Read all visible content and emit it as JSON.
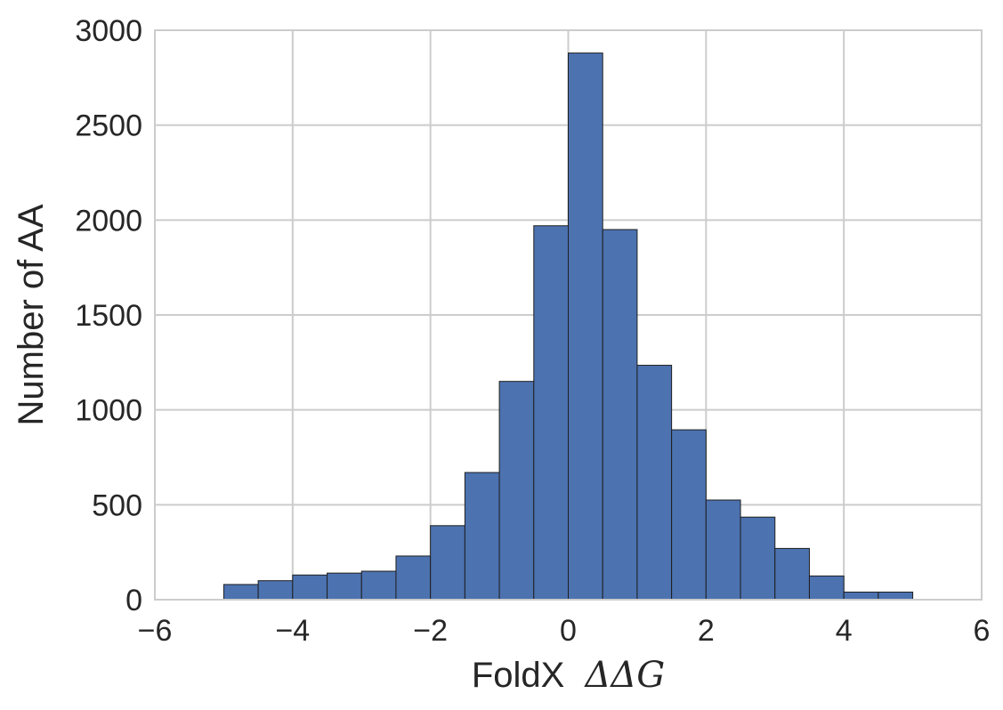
{
  "chart_data": {
    "type": "bar",
    "subtype": "histogram",
    "title": "",
    "xlabel": "FoldX",
    "xlabel_math": "ΔΔG",
    "ylabel": "Number of AA",
    "xlim": [
      -6,
      6
    ],
    "ylim": [
      0,
      3000
    ],
    "xticks": [
      -6,
      -4,
      -2,
      0,
      2,
      4,
      6
    ],
    "xtick_labels": [
      "−6",
      "−4",
      "−2",
      "0",
      "2",
      "4",
      "6"
    ],
    "yticks": [
      0,
      500,
      1000,
      1500,
      2000,
      2500,
      3000
    ],
    "ytick_labels": [
      "0",
      "500",
      "1000",
      "1500",
      "2000",
      "2500",
      "3000"
    ],
    "bin_edges": [
      -5,
      -4.5,
      -4,
      -3.5,
      -3,
      -2.5,
      -2,
      -1.5,
      -1,
      -0.5,
      0,
      0.5,
      1,
      1.5,
      2,
      2.5,
      3,
      3.5,
      4,
      4.5,
      5
    ],
    "values": [
      80,
      100,
      130,
      140,
      150,
      230,
      390,
      670,
      1150,
      1970,
      2880,
      1950,
      1235,
      895,
      525,
      435,
      270,
      125,
      40,
      40
    ],
    "grid": true,
    "bar_color": "#4C72B0",
    "bar_edge_color": "#1f1f1f",
    "grid_color": "#cccccc"
  }
}
